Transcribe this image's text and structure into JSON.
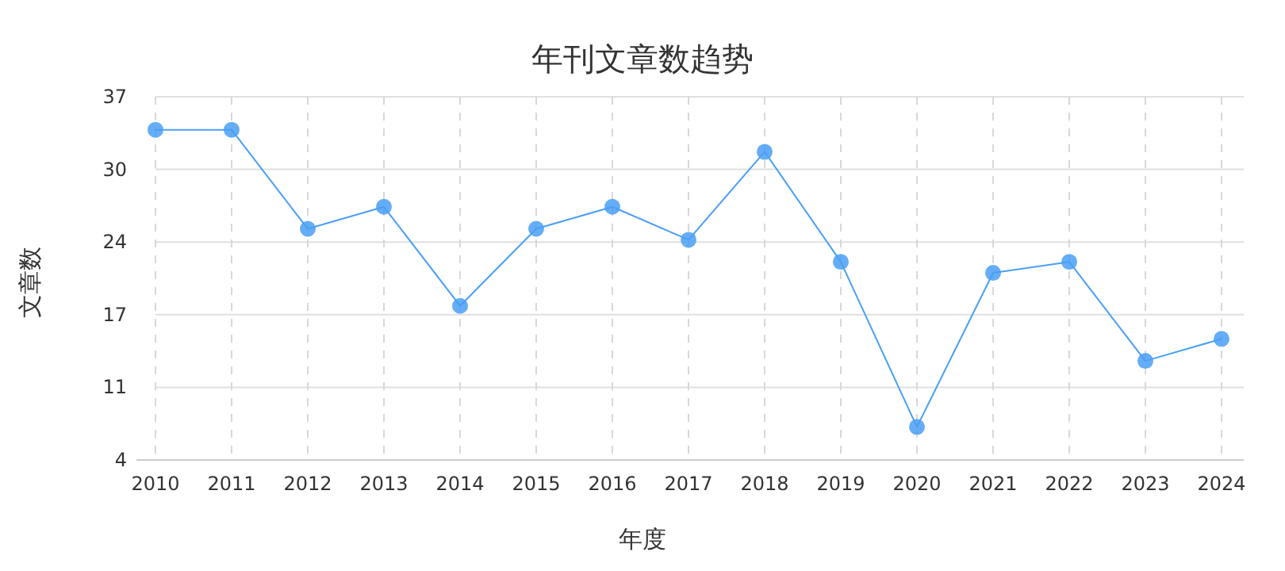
{
  "chart_data": {
    "type": "line",
    "title": "年刊文章数趋势",
    "xlabel": "年度",
    "ylabel": "文章数",
    "categories": [
      "2010",
      "2011",
      "2012",
      "2013",
      "2014",
      "2015",
      "2016",
      "2017",
      "2018",
      "2019",
      "2020",
      "2021",
      "2022",
      "2023",
      "2024"
    ],
    "series": [
      {
        "color": "#4a9ff5",
        "values": [
          34,
          34,
          25,
          27,
          18,
          25,
          27,
          24,
          32,
          22,
          7,
          21,
          22,
          13,
          15
        ]
      }
    ],
    "ylim": [
      4,
      37
    ],
    "yticks": [
      4,
      {
        "value": 10.6,
        "label": "11"
      },
      {
        "value": 17.2,
        "label": "17"
      },
      {
        "value": 23.8,
        "label": "24"
      },
      {
        "value": 30.4,
        "label": "30"
      },
      37
    ],
    "grid": true,
    "marker": "circle",
    "line_style": "solid"
  }
}
